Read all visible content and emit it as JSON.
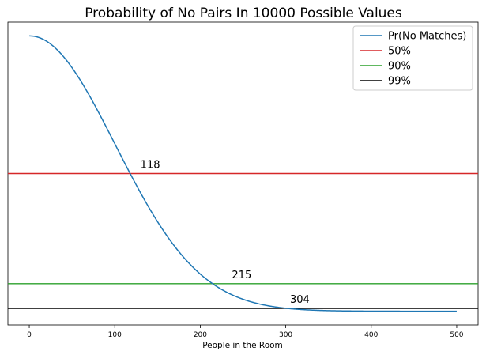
{
  "chart_data": {
    "type": "line",
    "title": "Probability of No Pairs In 10000 Possible Values",
    "xlabel": "People in the Room",
    "ylabel": "",
    "xlim": [
      -25,
      525
    ],
    "ylim": [
      -0.05,
      1.05
    ],
    "xticks": [
      0,
      100,
      200,
      300,
      400,
      500
    ],
    "grid": false,
    "legend_position": "top-right",
    "series": [
      {
        "name": "Pr(No Matches)",
        "color": "#1f77b4",
        "x_start": 0,
        "x_end": 500,
        "formula": "prod_{i=0}^{n-1} (1 - i/10000)"
      }
    ],
    "hlines": [
      {
        "name": "50%",
        "y": 0.5,
        "color": "#d62728"
      },
      {
        "name": "90%",
        "y": 0.1,
        "color": "#2ca02c"
      },
      {
        "name": "99%",
        "y": 0.01,
        "color": "#000000"
      }
    ],
    "annotations": [
      {
        "text": "118",
        "x": 130,
        "y": 0.5
      },
      {
        "text": "215",
        "x": 237,
        "y": 0.1
      },
      {
        "text": "304",
        "x": 305,
        "y": 0.01
      }
    ]
  }
}
